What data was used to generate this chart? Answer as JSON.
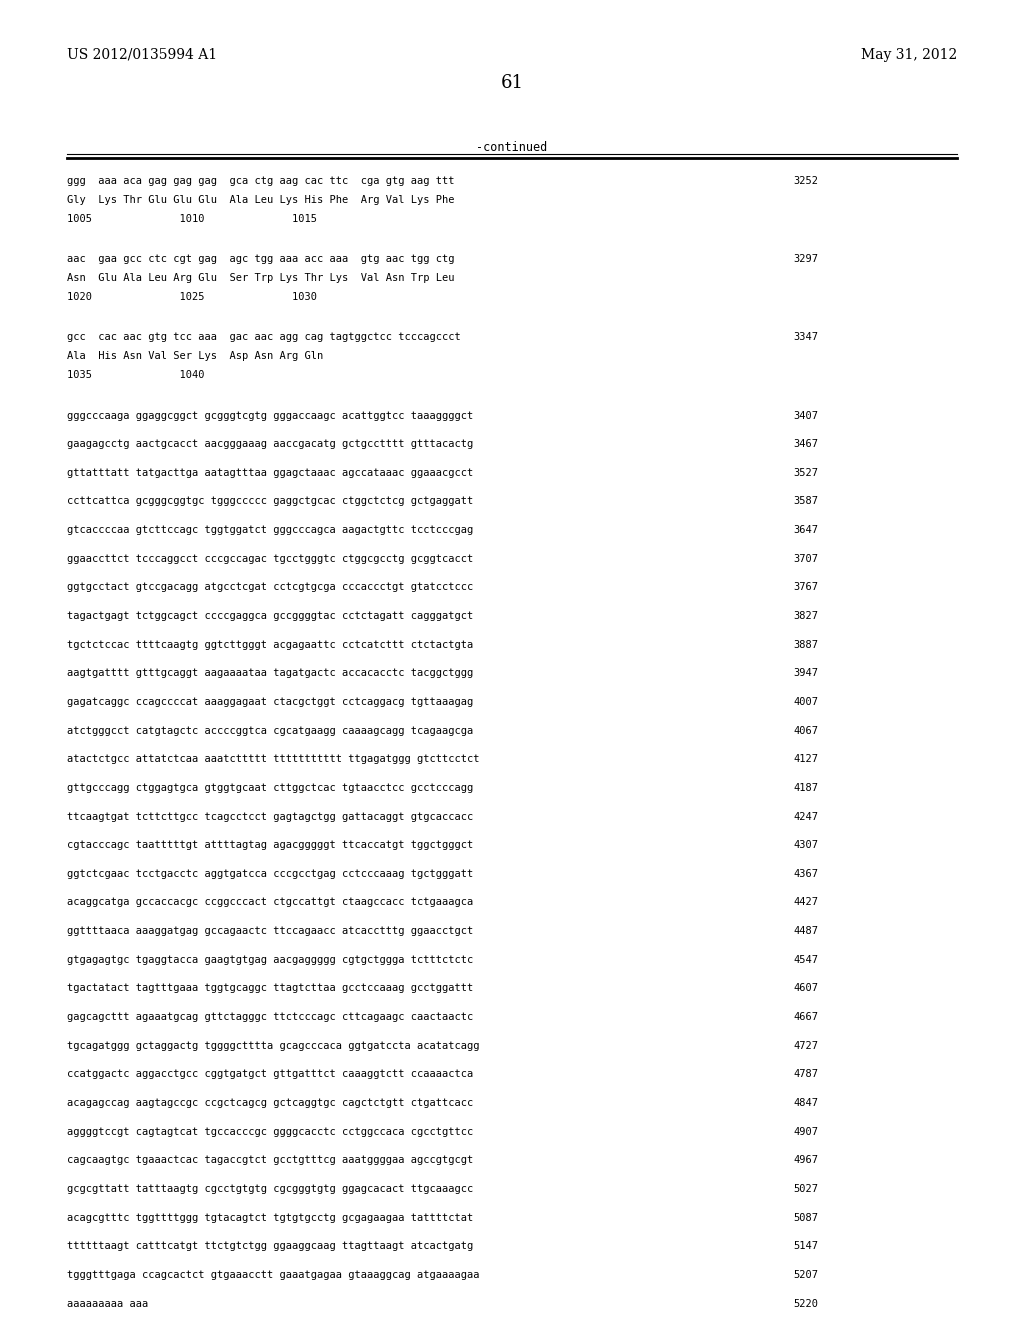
{
  "header_left": "US 2012/0135994 A1",
  "header_right": "May 31, 2012",
  "page_number": "61",
  "continued_label": "-continued",
  "background_color": "#ffffff",
  "text_color": "#000000",
  "font_size": 7.5,
  "header_font_size": 10,
  "page_num_font_size": 13,
  "content": [
    {
      "type": "block3",
      "lines": [
        "ggg  aaa aca gag gag gag  gca ctg aag cac ttc  cga gtg aag ttt",
        "Gly  Lys Thr Glu Glu Glu  Ala Leu Lys His Phe  Arg Val Lys Phe",
        "1005              1010              1015"
      ],
      "num": "3252"
    },
    {
      "type": "block3",
      "lines": [
        "aac  gaa gcc ctc cgt gag  agc tgg aaa acc aaa  gtg aac tgg ctg",
        "Asn  Glu Ala Leu Arg Glu  Ser Trp Lys Thr Lys  Val Asn Trp Leu",
        "1020              1025              1030"
      ],
      "num": "3297"
    },
    {
      "type": "block3",
      "lines": [
        "gcc  cac aac gtg tcc aaa  gac aac agg cag tagtggctcc tcccagccct",
        "Ala  His Asn Val Ser Lys  Asp Asn Arg Gln",
        "1035              1040"
      ],
      "num": "3347"
    },
    {
      "type": "seq",
      "line": "gggcccaaga ggaggcggct gcgggtcgtg gggaccaagc acattggtcc taaaggggct",
      "num": "3407"
    },
    {
      "type": "seq",
      "line": "gaagagcctg aactgcacct aacgggaaag aaccgacatg gctgcctttt gtttacactg",
      "num": "3467"
    },
    {
      "type": "seq",
      "line": "gttatttatt tatgacttga aatagtttaa ggagctaaac agccataaac ggaaacgcct",
      "num": "3527"
    },
    {
      "type": "seq",
      "line": "ccttcattca gcgggcggtgc tgggccccc gaggctgcac ctggctctcg gctgaggatt",
      "num": "3587"
    },
    {
      "type": "seq",
      "line": "gtcaccccaa gtcttccagc tggtggatct gggcccagca aagactgttc tcctcccgag",
      "num": "3647"
    },
    {
      "type": "seq",
      "line": "ggaaccttct tcccaggcct cccgccagac tgcctgggtc ctggcgcctg gcggtcacct",
      "num": "3707"
    },
    {
      "type": "seq",
      "line": "ggtgcctact gtccgacagg atgcctcgat cctcgtgcga cccaccctgt gtatcctccc",
      "num": "3767"
    },
    {
      "type": "seq",
      "line": "tagactgagt tctggcagct ccccgaggca gccggggtac cctctagatt cagggatgct",
      "num": "3827"
    },
    {
      "type": "seq",
      "line": "tgctctccac ttttcaagtg ggtcttgggt acgagaattc cctcatcttt ctctactgta",
      "num": "3887"
    },
    {
      "type": "seq",
      "line": "aagtgatttt gtttgcaggt aagaaaataa tagatgactc accacacctc tacggctggg",
      "num": "3947"
    },
    {
      "type": "seq",
      "line": "gagatcaggc ccagccccat aaaggagaat ctacgctggt cctcaggacg tgttaaagag",
      "num": "4007"
    },
    {
      "type": "seq",
      "line": "atctgggcct catgtagctc accccggtca cgcatgaagg caaaagcagg tcagaagcga",
      "num": "4067"
    },
    {
      "type": "seq",
      "line": "atactctgcc attatctcaa aaatcttttt ttttttttttt ttgagatggg gtcttcctct",
      "num": "4127"
    },
    {
      "type": "seq",
      "line": "gttgcccagg ctggagtgca gtggtgcaat cttggctcac tgtaacctcc gcctcccagg",
      "num": "4187"
    },
    {
      "type": "seq",
      "line": "ttcaagtgat tcttcttgcc tcagcctcct gagtagctgg gattacaggt gtgcaccacc",
      "num": "4247"
    },
    {
      "type": "seq",
      "line": "cgtacccagc taatttttgt attttagtag agacgggggt ttcaccatgt tggctgggct",
      "num": "4307"
    },
    {
      "type": "seq",
      "line": "ggtctcgaac tcctgacctc aggtgatcca cccgcctgag cctcccaaag tgctgggatt",
      "num": "4367"
    },
    {
      "type": "seq",
      "line": "acaggcatga gccaccacgc ccggcccact ctgccattgt ctaagccacc tctgaaagca",
      "num": "4427"
    },
    {
      "type": "seq",
      "line": "ggttttaaca aaaggatgag gccagaactc ttccagaacc atcacctttg ggaacctgct",
      "num": "4487"
    },
    {
      "type": "seq",
      "line": "gtgagagtgc tgaggtacca gaagtgtgag aacgaggggg cgtgctggga tctttctctc",
      "num": "4547"
    },
    {
      "type": "seq",
      "line": "tgactatact tagtttgaaa tggtgcaggc ttagtcttaa gcctccaaag gcctggattt",
      "num": "4607"
    },
    {
      "type": "seq",
      "line": "gagcagcttt agaaatgcag gttctagggc ttctcccagc cttcagaagc caactaactc",
      "num": "4667"
    },
    {
      "type": "seq",
      "line": "tgcagatggg gctaggactg tggggctttta gcagcccaca ggtgatccta acatatcagg",
      "num": "4727"
    },
    {
      "type": "seq",
      "line": "ccatggactc aggacctgcc cggtgatgct gttgatttct caaaggtctt ccaaaactca",
      "num": "4787"
    },
    {
      "type": "seq",
      "line": "acagagccag aagtagccgc ccgctcagcg gctcaggtgc cagctctgtt ctgattcacc",
      "num": "4847"
    },
    {
      "type": "seq",
      "line": "aggggtccgt cagtagtcat tgccacccgc ggggcacctc cctggccaca cgcctgttcc",
      "num": "4907"
    },
    {
      "type": "seq",
      "line": "cagcaagtgc tgaaactcac tagaccgtct gcctgtttcg aaatggggaa agccgtgcgt",
      "num": "4967"
    },
    {
      "type": "seq",
      "line": "gcgcgttatt tatttaagtg cgcctgtgtg cgcgggtgtg ggagcacact ttgcaaagcc",
      "num": "5027"
    },
    {
      "type": "seq",
      "line": "acagcgtttc tggttttggg tgtacagtct tgtgtgcctg gcgagaagaa tattttctat",
      "num": "5087"
    },
    {
      "type": "seq",
      "line": "ttttttaagt catttcatgt ttctgtctgg ggaaggcaag ttagttaagt atcactgatg",
      "num": "5147"
    },
    {
      "type": "seq",
      "line": "tgggtttgaga ccagcactct gtgaaacctt gaaatgagaa gtaaaggcag atgaaaagaa",
      "num": "5207"
    },
    {
      "type": "seq",
      "line": "aaaaaaaaa aaa",
      "num": "5220"
    }
  ]
}
